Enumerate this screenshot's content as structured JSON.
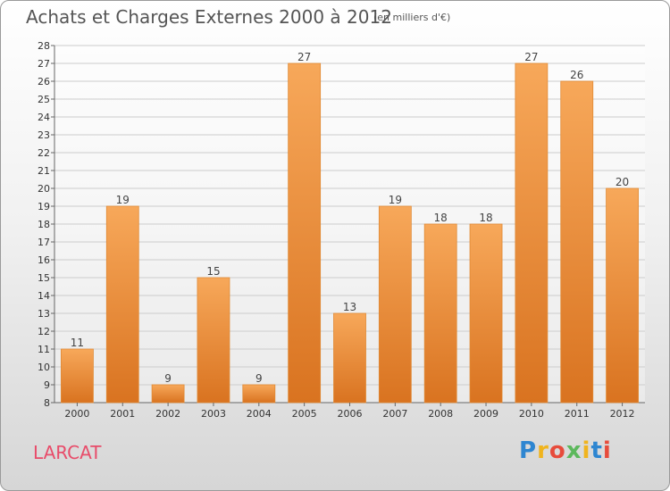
{
  "title": "Achats et Charges Externes 2000 à 2012",
  "unit": "(en milliers d'€)",
  "place": "LARCAT",
  "logo": [
    "P",
    "r",
    "o",
    "x",
    "i",
    "t",
    "i"
  ],
  "colors": {
    "bar": "#f29a3e",
    "barDark": "#d97320",
    "grid": "#cccccc"
  },
  "chart_data": {
    "type": "bar",
    "categories": [
      "2000",
      "2001",
      "2002",
      "2003",
      "2004",
      "2005",
      "2006",
      "2007",
      "2008",
      "2009",
      "2010",
      "2011",
      "2012"
    ],
    "values": [
      11,
      19,
      9,
      15,
      9,
      27,
      13,
      19,
      18,
      18,
      27,
      26,
      20
    ],
    "title": "Achats et Charges Externes 2000 à 2012",
    "ylim": [
      8,
      28
    ],
    "yticks": [
      8,
      9,
      10,
      11,
      12,
      13,
      14,
      15,
      16,
      17,
      18,
      19,
      20,
      21,
      22,
      23,
      24,
      25,
      26,
      27,
      28
    ],
    "grid": true
  }
}
